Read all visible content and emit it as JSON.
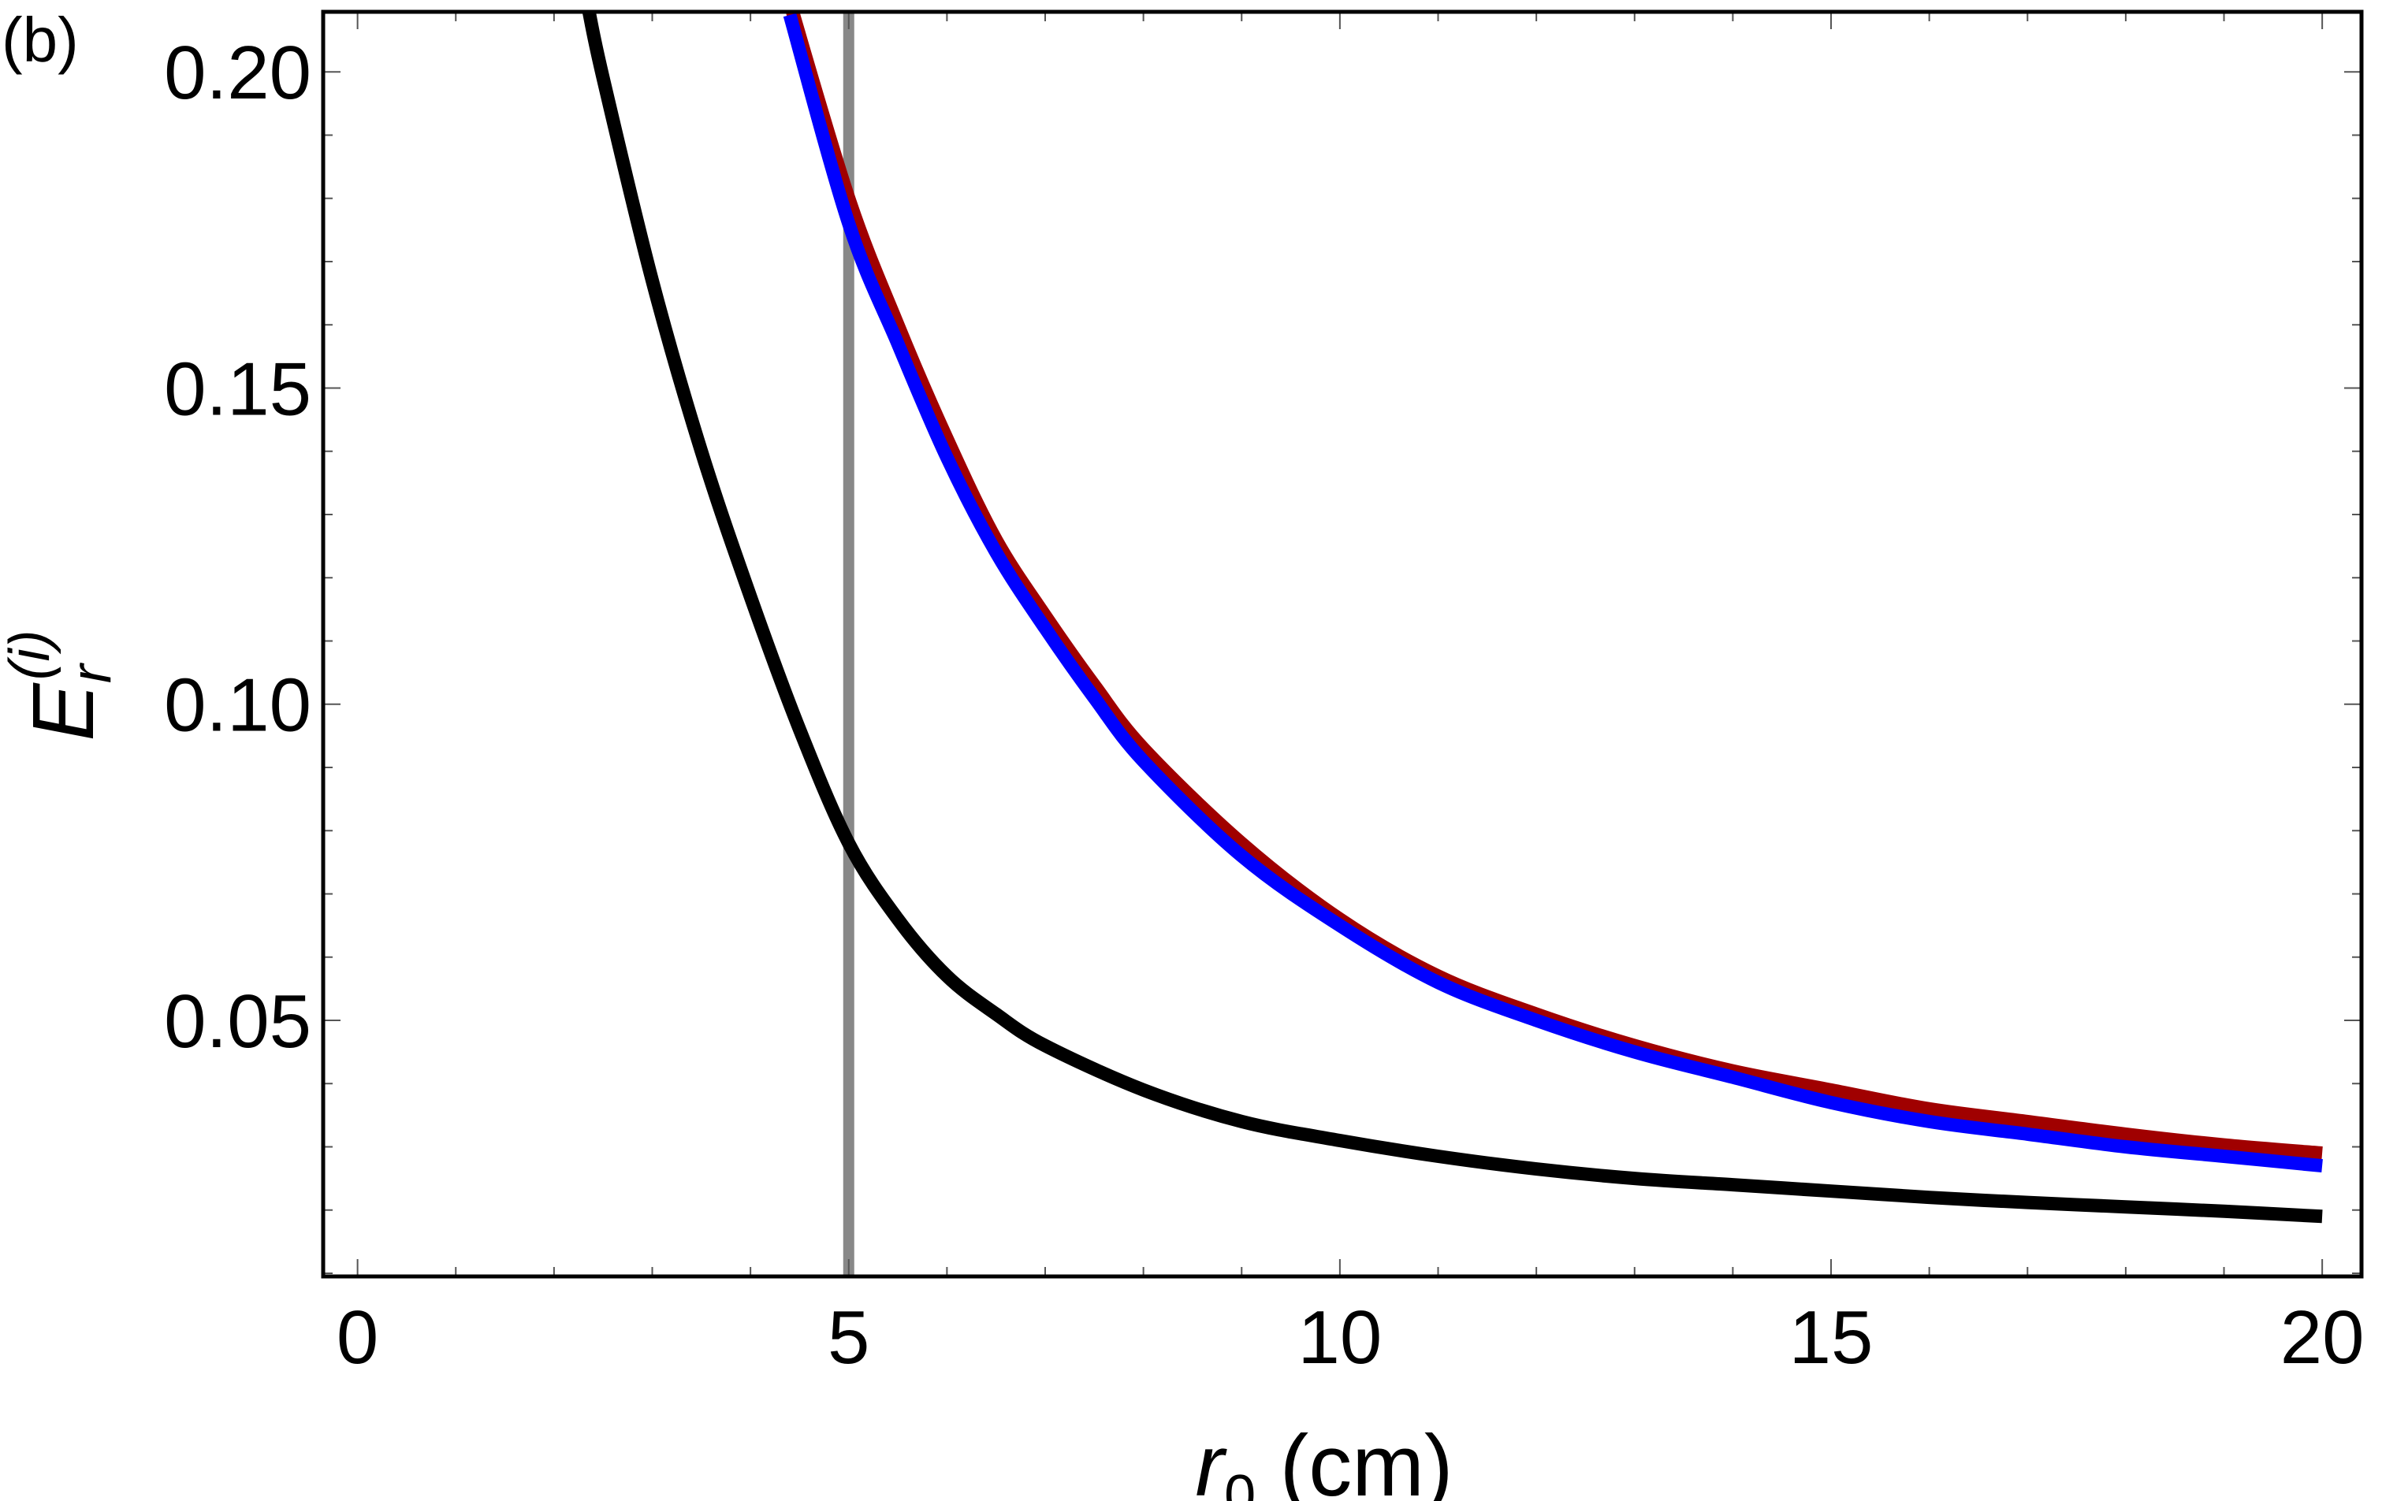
{
  "chart_data": {
    "type": "line",
    "panel_label": "(b)",
    "xlabel": {
      "main": "r",
      "sub": "0",
      "unit": " (cm)"
    },
    "ylabel": {
      "main": "E",
      "sub": "r",
      "sup": "(i)"
    },
    "xlim": [
      -0.35,
      20.4
    ],
    "ylim": [
      0.0095,
      0.2095
    ],
    "x_ticks": [
      0,
      5,
      10,
      15,
      20
    ],
    "x_tick_labels": [
      "0",
      "5",
      "10",
      "15",
      "20"
    ],
    "y_ticks": [
      0.05,
      0.1,
      0.15,
      0.2
    ],
    "y_tick_labels": [
      "0.05",
      "0.10",
      "0.15",
      "0.20"
    ],
    "grid": false,
    "legend": "none",
    "reference_line": {
      "x": 5,
      "color": "#888888"
    },
    "series": [
      {
        "color": "#a00000",
        "x": [
          4.4,
          5,
          5.5,
          6,
          6.5,
          7,
          7.5,
          8,
          9,
          10,
          11,
          12,
          13,
          14,
          15,
          16,
          17,
          18,
          19,
          20
        ],
        "values": [
          0.211,
          0.18,
          0.16,
          0.142,
          0.126,
          0.114,
          0.103,
          0.093,
          0.078,
          0.066,
          0.057,
          0.051,
          0.046,
          0.042,
          0.039,
          0.036,
          0.034,
          0.032,
          0.0303,
          0.029
        ]
      },
      {
        "color": "#0000ff",
        "x": [
          4.4,
          5,
          5.5,
          6,
          6.5,
          7,
          7.5,
          8,
          9,
          10,
          11,
          12,
          13,
          14,
          15,
          16,
          17,
          18,
          19,
          20
        ],
        "values": [
          0.209,
          0.176,
          0.157,
          0.139,
          0.124,
          0.112,
          0.101,
          0.091,
          0.076,
          0.065,
          0.056,
          0.05,
          0.045,
          0.041,
          0.037,
          0.034,
          0.032,
          0.03,
          0.0285,
          0.027
        ]
      },
      {
        "color": "#000000",
        "x": [
          2.35,
          2.5,
          3,
          3.5,
          4,
          4.5,
          5,
          5.5,
          6,
          6.5,
          7,
          8,
          9,
          10,
          11,
          12,
          13,
          14,
          15,
          16,
          17,
          18,
          19,
          20
        ],
        "values": [
          0.21,
          0.199,
          0.167,
          0.14,
          0.117,
          0.096,
          0.078,
          0.066,
          0.057,
          0.051,
          0.046,
          0.039,
          0.034,
          0.031,
          0.0285,
          0.0265,
          0.025,
          0.024,
          0.023,
          0.022,
          0.0212,
          0.0205,
          0.0198,
          0.019
        ]
      }
    ]
  }
}
